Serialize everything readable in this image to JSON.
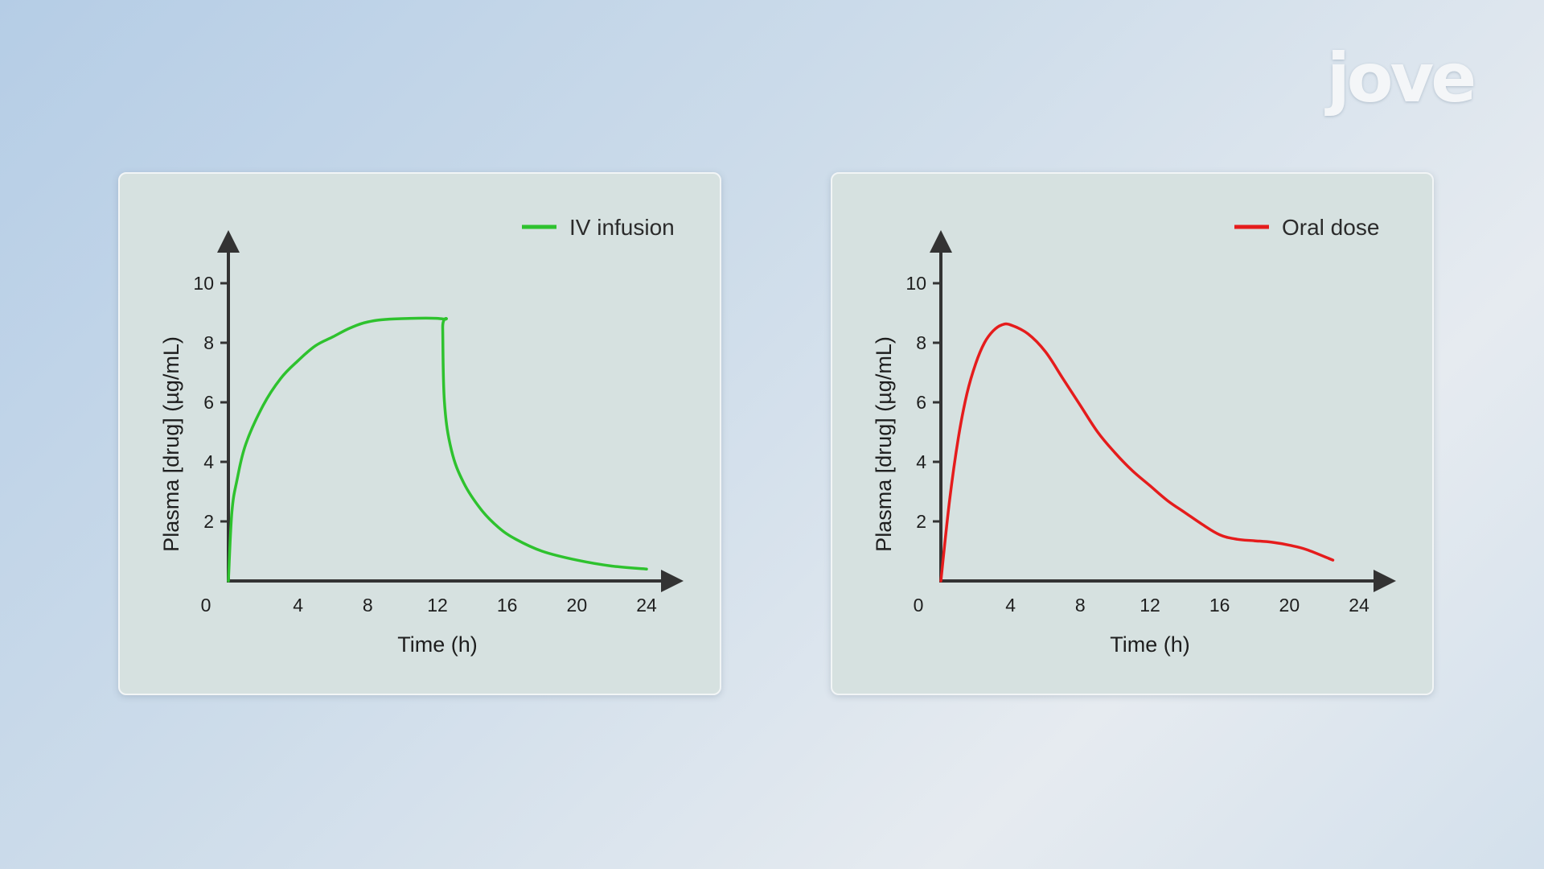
{
  "logo": {
    "text": "jove"
  },
  "chart_data": [
    {
      "type": "line",
      "title": "",
      "xlabel": "Time (h)",
      "ylabel": "Plasma [drug] (µg/mL)",
      "xlim": [
        0,
        24
      ],
      "ylim": [
        0,
        10
      ],
      "x_ticks": [
        4,
        8,
        12,
        16,
        20,
        24
      ],
      "y_ticks": [
        2,
        4,
        6,
        8,
        10
      ],
      "origin_label": "0",
      "grid": false,
      "legend_position": "top-right",
      "series": [
        {
          "name": "IV infusion",
          "color": "#2ec22e",
          "x": [
            0,
            0.2,
            0.5,
            1,
            2,
            3,
            4,
            5,
            6,
            7,
            8,
            9.5,
            12.3,
            12.3,
            12.4,
            12.8,
            13.5,
            14.5,
            15.5,
            16.5,
            18,
            20,
            22,
            24
          ],
          "y": [
            0,
            2.3,
            3.4,
            4.6,
            5.9,
            6.8,
            7.4,
            7.9,
            8.2,
            8.5,
            8.7,
            8.8,
            8.8,
            8.5,
            6.0,
            4.4,
            3.3,
            2.4,
            1.8,
            1.4,
            1.0,
            0.7,
            0.5,
            0.4
          ]
        }
      ]
    },
    {
      "type": "line",
      "title": "",
      "xlabel": "Time (h)",
      "ylabel": "Plasma [drug] (µg/mL)",
      "xlim": [
        0,
        24
      ],
      "ylim": [
        0,
        10
      ],
      "x_ticks": [
        4,
        8,
        12,
        16,
        20,
        24
      ],
      "y_ticks": [
        2,
        4,
        6,
        8,
        10
      ],
      "origin_label": "0",
      "grid": false,
      "legend_position": "top-right",
      "series": [
        {
          "name": "Oral dose",
          "color": "#e51c1c",
          "x": [
            0,
            0.5,
            1,
            1.5,
            2,
            2.5,
            3,
            3.5,
            4,
            5,
            6,
            7,
            8,
            9,
            10,
            11,
            12,
            13,
            14,
            15,
            16,
            17,
            18,
            19,
            20,
            21,
            22.5
          ],
          "y": [
            0,
            2.7,
            4.8,
            6.3,
            7.3,
            8.0,
            8.4,
            8.6,
            8.6,
            8.3,
            7.7,
            6.8,
            5.9,
            5.0,
            4.3,
            3.7,
            3.2,
            2.7,
            2.3,
            1.9,
            1.55,
            1.4,
            1.35,
            1.3,
            1.2,
            1.05,
            0.7
          ]
        }
      ]
    }
  ]
}
